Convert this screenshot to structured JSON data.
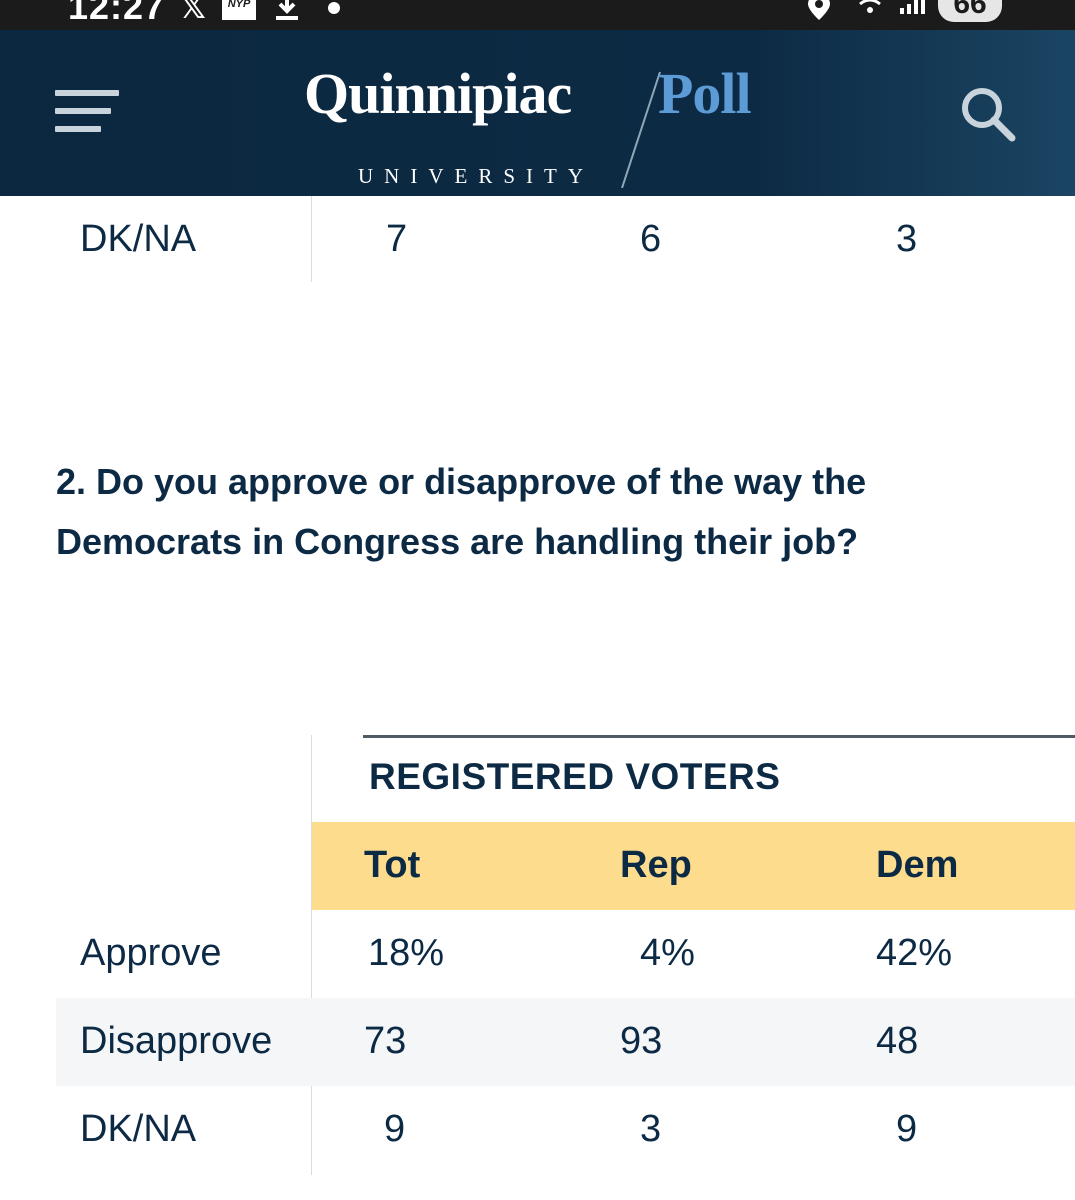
{
  "status_bar": {
    "time": "12:27",
    "x_logo": "𝕏",
    "nyp_badge": "NYP",
    "battery": "66"
  },
  "header": {
    "logo_main": "Quinnipiac",
    "logo_sub": "UNIVERSITY",
    "logo_poll": "Poll",
    "colors": {
      "background": "#0c2840",
      "poll_accent": "#5d9bd6"
    }
  },
  "prev_table": {
    "row": {
      "label": "DK/NA",
      "tot": "7",
      "rep": "6",
      "dem": "3"
    }
  },
  "question": {
    "text": "2. Do you approve or disapprove of the way the Democrats in Congress are handling their job?"
  },
  "table": {
    "group_title": "REGISTERED VOTERS",
    "columns": [
      "Tot",
      "Rep",
      "Dem"
    ],
    "header_color": "#fedc8d",
    "rows": [
      {
        "label": "Approve",
        "tot": "18%",
        "rep": "4%",
        "dem": "42%"
      },
      {
        "label": "Disapprove",
        "tot": "73",
        "rep": "93",
        "dem": "48"
      },
      {
        "label": "DK/NA",
        "tot": "9",
        "rep": "3",
        "dem": "9"
      }
    ]
  }
}
